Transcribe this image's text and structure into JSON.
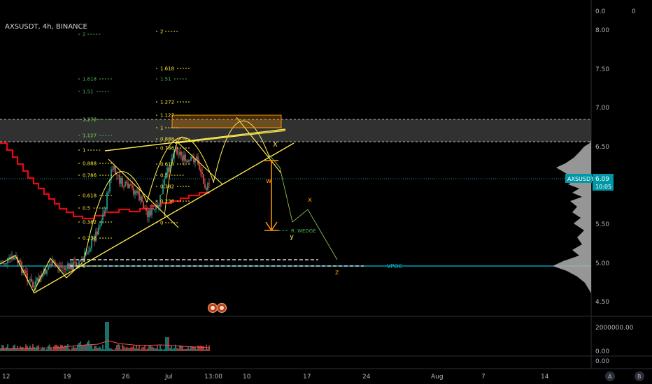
{
  "header": {
    "symbol_line": "AXSUSDT, 4h, BINANCE"
  },
  "top_right": {
    "val1": "0.0",
    "val2": "0"
  },
  "chart_data": {
    "type": "candlestick",
    "title": "AXSUSDT, 4h, BINANCE",
    "price_axis": {
      "ticks": [
        "8.00",
        "7.50",
        "7.00",
        "6.50",
        "5.50",
        "5.00",
        "4.50"
      ],
      "range": [
        4.45,
        8.1
      ]
    },
    "time_axis": {
      "ticks": [
        "12",
        "19",
        "26",
        "Jul",
        "13:00",
        "10",
        "17",
        "24",
        "Aug",
        "7",
        "14"
      ]
    },
    "volume_axis": {
      "ticks": [
        "2000000.00",
        "0.00"
      ]
    },
    "osc_axis": {
      "ticks": [
        "0.00"
      ]
    },
    "last_price": {
      "symbol": "AXSUSDT",
      "price": "6.09",
      "countdown": "10:05"
    },
    "vpoc_label": "VPOC",
    "pattern_label": "R. WEDGE",
    "wave_labels": [
      "w",
      "x",
      "y",
      "z",
      "X"
    ],
    "fib_left_yellow": [
      "1.272",
      "1.127",
      "1",
      "0.888",
      "0.786",
      "0.618",
      "0.5",
      "0.382",
      "0.236",
      "0"
    ],
    "fib_left_green": [
      "2",
      "1.618",
      "1.51",
      "1.272",
      "1.127"
    ],
    "fib_mid_yellow": [
      "2",
      "1.618",
      "1.272",
      "1.127",
      "1",
      "0.888",
      "0.786",
      "0.618",
      "0.5",
      "0.382",
      "0.236",
      "0"
    ],
    "fib_mid_green": [
      "1.51"
    ]
  },
  "bottom_buttons": {
    "a": "A",
    "b": "B"
  },
  "colors": {
    "bg": "#000000",
    "up": "#26a69a",
    "down": "#ef5350",
    "fib_yellow": "#ffeb3b",
    "fib_green": "#4caf50",
    "pattern": "#f9e44b",
    "target": "#ff9800",
    "vpoc": "#00bcd4",
    "last_price": "#0097a7"
  }
}
